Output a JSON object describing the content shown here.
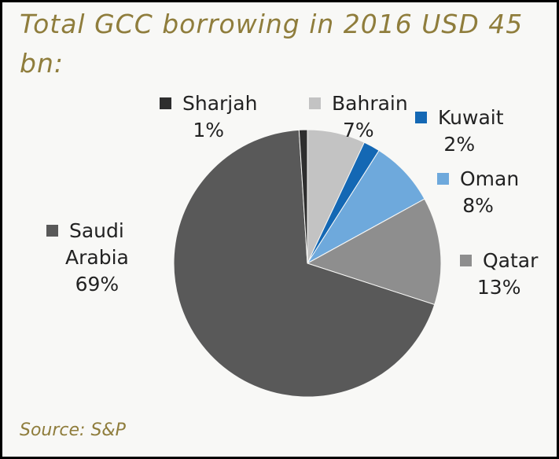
{
  "chart_data": {
    "type": "pie",
    "title": "Total GCC borrowing in 2016 USD 45 bn:",
    "title_lines": [
      "Total GCC borrowing in 2016 USD 45",
      "bn:"
    ],
    "source": "Source: S&P",
    "slices": [
      {
        "name": "Bahrain",
        "value": 7,
        "label": "7%",
        "color": "#c3c3c3"
      },
      {
        "name": "Kuwait",
        "value": 2,
        "label": "2%",
        "color": "#1468b4"
      },
      {
        "name": "Oman",
        "value": 8,
        "label": "8%",
        "color": "#6ea9dc"
      },
      {
        "name": "Qatar",
        "value": 13,
        "label": "13%",
        "color": "#8e8e8e"
      },
      {
        "name": "Saudi Arabia",
        "value": 69,
        "label": "69%",
        "color": "#595959"
      },
      {
        "name": "Sharjah",
        "value": 1,
        "label": "1%",
        "color": "#2e2e2e"
      }
    ],
    "start_angle": "12 o'clock",
    "direction": "clockwise",
    "legend": "labels beside slices"
  }
}
